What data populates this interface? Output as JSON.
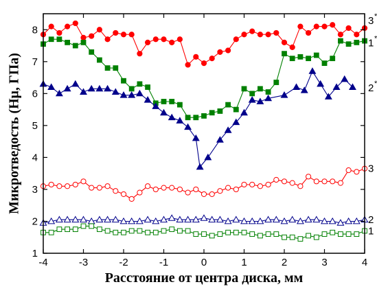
{
  "chart_data": {
    "type": "line",
    "xlabel": "Расстояние от центра диска, мм",
    "ylabel": "Микротведость (Hμ, ГПа)",
    "xlim": [
      -4,
      4
    ],
    "ylim": [
      1,
      8.5
    ],
    "xticks": [
      -4,
      -3,
      -2,
      -1,
      0,
      1,
      2,
      3,
      4
    ],
    "yticks": [
      1,
      2,
      3,
      4,
      5,
      6,
      7,
      8
    ],
    "grid": false,
    "series": [
      {
        "name": "3*",
        "label_main": "3",
        "label_star": "*",
        "color": "#ff0000",
        "marker": "circle",
        "filled": true,
        "x": [
          -4.0,
          -3.8,
          -3.6,
          -3.4,
          -3.2,
          -3.0,
          -2.8,
          -2.6,
          -2.4,
          -2.2,
          -2.0,
          -1.8,
          -1.6,
          -1.4,
          -1.2,
          -1.0,
          -0.8,
          -0.6,
          -0.4,
          -0.2,
          0.0,
          0.2,
          0.4,
          0.6,
          0.8,
          1.0,
          1.2,
          1.4,
          1.6,
          1.8,
          2.0,
          2.2,
          2.4,
          2.6,
          2.8,
          3.0,
          3.2,
          3.4,
          3.6,
          3.8,
          4.0
        ],
        "y": [
          7.85,
          8.1,
          7.9,
          8.1,
          8.2,
          7.75,
          7.8,
          8.0,
          7.7,
          7.9,
          7.85,
          7.85,
          7.25,
          7.6,
          7.7,
          7.7,
          7.6,
          7.7,
          6.9,
          7.15,
          6.95,
          7.1,
          7.3,
          7.35,
          7.7,
          7.85,
          7.95,
          7.85,
          7.85,
          7.9,
          7.6,
          7.45,
          8.1,
          7.9,
          8.1,
          8.1,
          8.15,
          7.85,
          8.05,
          7.85,
          8.05
        ]
      },
      {
        "name": "1*",
        "label_main": "1",
        "label_star": "*",
        "color": "#008000",
        "marker": "square",
        "filled": true,
        "x": [
          -4.0,
          -3.8,
          -3.6,
          -3.4,
          -3.2,
          -3.0,
          -2.8,
          -2.6,
          -2.4,
          -2.2,
          -2.0,
          -1.8,
          -1.6,
          -1.4,
          -1.2,
          -1.0,
          -0.8,
          -0.6,
          -0.4,
          -0.2,
          0.0,
          0.2,
          0.4,
          0.6,
          0.8,
          1.0,
          1.2,
          1.4,
          1.6,
          1.8,
          2.0,
          2.2,
          2.4,
          2.6,
          2.8,
          3.0,
          3.2,
          3.4,
          3.6,
          3.8,
          4.0
        ],
        "y": [
          7.55,
          7.7,
          7.7,
          7.6,
          7.5,
          7.6,
          7.3,
          7.05,
          6.8,
          6.8,
          6.4,
          6.15,
          6.3,
          6.2,
          5.7,
          5.75,
          5.75,
          5.65,
          5.25,
          5.25,
          5.3,
          5.4,
          5.45,
          5.65,
          5.5,
          6.15,
          6.0,
          6.15,
          6.05,
          6.35,
          7.25,
          7.1,
          7.15,
          7.1,
          7.2,
          6.95,
          7.1,
          7.65,
          7.55,
          7.6,
          7.65
        ]
      },
      {
        "name": "2*",
        "label_main": "2",
        "label_star": "*",
        "color": "#00008b",
        "marker": "triangle",
        "filled": true,
        "x": [
          -4.0,
          -3.8,
          -3.6,
          -3.4,
          -3.2,
          -3.0,
          -2.8,
          -2.6,
          -2.4,
          -2.2,
          -2.0,
          -1.8,
          -1.6,
          -1.4,
          -1.2,
          -1.0,
          -0.8,
          -0.6,
          -0.4,
          -0.2,
          -0.1,
          0.1,
          0.4,
          0.6,
          0.8,
          1.0,
          1.2,
          1.4,
          1.6,
          2.0,
          2.3,
          2.5,
          2.7,
          2.9,
          3.1,
          3.3,
          3.5,
          3.7
        ],
        "y": [
          6.3,
          6.2,
          6.0,
          6.15,
          6.3,
          6.05,
          6.15,
          6.15,
          6.15,
          6.05,
          5.95,
          5.95,
          6.0,
          5.8,
          5.6,
          5.4,
          5.25,
          5.15,
          4.95,
          4.6,
          3.7,
          4.0,
          4.55,
          4.85,
          5.1,
          5.4,
          5.8,
          5.75,
          5.85,
          5.95,
          6.2,
          6.1,
          6.7,
          6.3,
          5.9,
          6.2,
          6.45,
          6.2
        ]
      },
      {
        "name": "3",
        "label_main": "3",
        "label_star": "",
        "color": "#ff0000",
        "marker": "circle",
        "filled": false,
        "x": [
          -4.0,
          -3.8,
          -3.6,
          -3.4,
          -3.2,
          -3.0,
          -2.8,
          -2.6,
          -2.4,
          -2.2,
          -2.0,
          -1.8,
          -1.6,
          -1.4,
          -1.2,
          -1.0,
          -0.8,
          -0.6,
          -0.4,
          -0.2,
          0.0,
          0.2,
          0.4,
          0.6,
          0.8,
          1.0,
          1.2,
          1.4,
          1.6,
          1.8,
          2.0,
          2.2,
          2.4,
          2.6,
          2.8,
          3.0,
          3.2,
          3.4,
          3.6,
          3.8,
          4.0
        ],
        "y": [
          3.1,
          3.15,
          3.1,
          3.1,
          3.15,
          3.25,
          3.05,
          3.05,
          3.1,
          2.95,
          2.85,
          2.7,
          2.9,
          3.1,
          3.0,
          3.05,
          3.05,
          3.0,
          2.9,
          3.0,
          2.85,
          2.85,
          2.95,
          3.05,
          3.0,
          3.15,
          3.15,
          3.1,
          3.15,
          3.3,
          3.25,
          3.2,
          3.1,
          3.4,
          3.25,
          3.25,
          3.25,
          3.2,
          3.6,
          3.55,
          3.65
        ]
      },
      {
        "name": "2",
        "label_main": "2",
        "label_star": "",
        "color": "#00008b",
        "marker": "triangle",
        "filled": false,
        "x": [
          -4.0,
          -3.8,
          -3.6,
          -3.4,
          -3.2,
          -3.0,
          -2.8,
          -2.6,
          -2.4,
          -2.2,
          -2.0,
          -1.8,
          -1.6,
          -1.4,
          -1.2,
          -1.0,
          -0.8,
          -0.6,
          -0.4,
          -0.2,
          0.0,
          0.2,
          0.4,
          0.6,
          0.8,
          1.0,
          1.2,
          1.4,
          1.6,
          1.8,
          2.0,
          2.2,
          2.4,
          2.6,
          2.8,
          3.0,
          3.2,
          3.4,
          3.6,
          3.8,
          4.0
        ],
        "y": [
          1.95,
          2.0,
          2.05,
          2.05,
          2.05,
          2.05,
          2.0,
          2.05,
          2.05,
          2.05,
          2.0,
          2.0,
          2.0,
          2.05,
          2.0,
          2.05,
          2.1,
          2.05,
          2.05,
          2.05,
          2.1,
          2.05,
          2.05,
          2.0,
          2.05,
          2.0,
          2.0,
          2.0,
          2.05,
          2.05,
          2.0,
          2.05,
          2.0,
          2.05,
          2.05,
          2.0,
          2.0,
          1.95,
          2.0,
          2.0,
          2.05
        ]
      },
      {
        "name": "1",
        "label_main": "1",
        "label_star": "",
        "color": "#008000",
        "marker": "square",
        "filled": false,
        "x": [
          -4.0,
          -3.8,
          -3.6,
          -3.4,
          -3.2,
          -3.0,
          -2.8,
          -2.6,
          -2.4,
          -2.2,
          -2.0,
          -1.8,
          -1.6,
          -1.4,
          -1.2,
          -1.0,
          -0.8,
          -0.6,
          -0.4,
          -0.2,
          0.0,
          0.2,
          0.4,
          0.6,
          0.8,
          1.0,
          1.2,
          1.4,
          1.6,
          1.8,
          2.0,
          2.2,
          2.4,
          2.6,
          2.8,
          3.0,
          3.2,
          3.4,
          3.6,
          3.8,
          4.0
        ],
        "y": [
          1.65,
          1.65,
          1.75,
          1.75,
          1.75,
          1.85,
          1.85,
          1.75,
          1.7,
          1.65,
          1.65,
          1.7,
          1.7,
          1.65,
          1.65,
          1.7,
          1.75,
          1.7,
          1.7,
          1.6,
          1.6,
          1.55,
          1.6,
          1.65,
          1.65,
          1.65,
          1.6,
          1.55,
          1.6,
          1.6,
          1.5,
          1.5,
          1.45,
          1.55,
          1.5,
          1.6,
          1.65,
          1.6,
          1.6,
          1.6,
          1.7
        ]
      }
    ]
  }
}
